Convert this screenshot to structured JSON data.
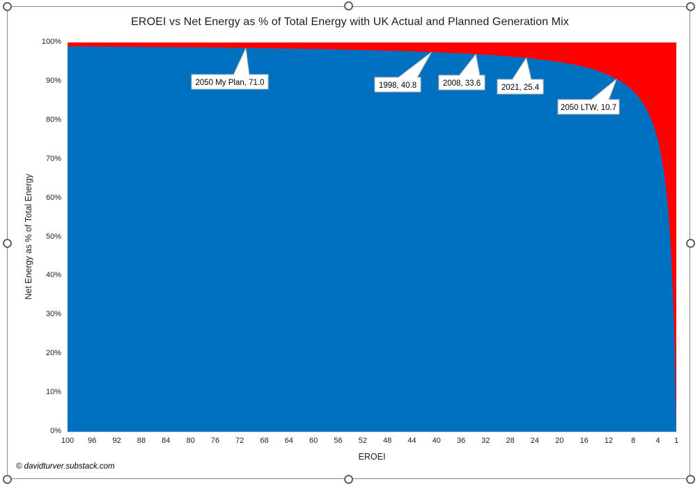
{
  "footer": {
    "credit": "© davidturver.substack.com"
  },
  "chart_data": {
    "type": "area",
    "title": "EROEI vs Net Energy as % of Total Energy with UK Actual and Planned Generation Mix",
    "xlabel": "EROEI",
    "ylabel": "Net Energy as % of Total Energy",
    "x_axis": {
      "direction": "descending",
      "range": [
        100,
        1
      ],
      "ticks": [
        "100",
        "96",
        "92",
        "88",
        "84",
        "80",
        "76",
        "72",
        "68",
        "64",
        "60",
        "56",
        "52",
        "48",
        "44",
        "40",
        "36",
        "32",
        "28",
        "24",
        "20",
        "16",
        "12",
        "8",
        "4",
        "1"
      ]
    },
    "y_axis": {
      "range_pct": [
        0,
        100
      ],
      "ticks": [
        "0%",
        "10%",
        "20%",
        "30%",
        "40%",
        "50%",
        "60%",
        "70%",
        "80%",
        "90%",
        "100%"
      ]
    },
    "legend": "none",
    "grid": "off",
    "series": [
      {
        "name": "Net Energy as % of Total Energy",
        "color": "#0070C0",
        "relationship": "net_energy_pct = (1 - 1/EROEI) * 100",
        "points": [
          [
            100,
            99.0
          ],
          [
            90,
            98.89
          ],
          [
            80,
            98.75
          ],
          [
            70,
            98.57
          ],
          [
            60,
            98.33
          ],
          [
            50,
            98.0
          ],
          [
            45,
            97.78
          ],
          [
            40,
            97.5
          ],
          [
            35,
            97.14
          ],
          [
            30,
            96.67
          ],
          [
            25,
            96.0
          ],
          [
            20,
            95.0
          ],
          [
            18,
            94.44
          ],
          [
            16,
            93.75
          ],
          [
            14,
            92.86
          ],
          [
            12,
            91.67
          ],
          [
            10,
            90.0
          ],
          [
            9,
            88.89
          ],
          [
            8,
            87.5
          ],
          [
            7,
            85.71
          ],
          [
            6,
            83.33
          ],
          [
            5,
            80.0
          ],
          [
            4.5,
            77.78
          ],
          [
            4,
            75.0
          ],
          [
            3.5,
            71.43
          ],
          [
            3,
            66.67
          ],
          [
            2.5,
            60.0
          ],
          [
            2.25,
            55.56
          ],
          [
            2,
            50.0
          ],
          [
            1.8,
            44.44
          ],
          [
            1.6,
            37.5
          ],
          [
            1.4,
            28.57
          ],
          [
            1.3,
            23.08
          ],
          [
            1.2,
            16.67
          ],
          [
            1.1,
            9.09
          ],
          [
            1.05,
            4.76
          ],
          [
            1,
            0.0
          ]
        ]
      },
      {
        "name": "Energy Invested share",
        "color": "#FF0000",
        "fill": "remainder-above-curve"
      }
    ],
    "annotations": [
      {
        "label": "2050 My Plan, 71.0",
        "eroei": 71.0,
        "net_energy_pct": 98.59
      },
      {
        "label": "1998, 40.8",
        "eroei": 40.8,
        "net_energy_pct": 97.55
      },
      {
        "label": "2008, 33.6",
        "eroei": 33.6,
        "net_energy_pct": 97.02
      },
      {
        "label": "2021, 25.4",
        "eroei": 25.4,
        "net_energy_pct": 96.06
      },
      {
        "label": "2050 LTW, 10.7",
        "eroei": 10.7,
        "net_energy_pct": 90.65
      }
    ]
  }
}
